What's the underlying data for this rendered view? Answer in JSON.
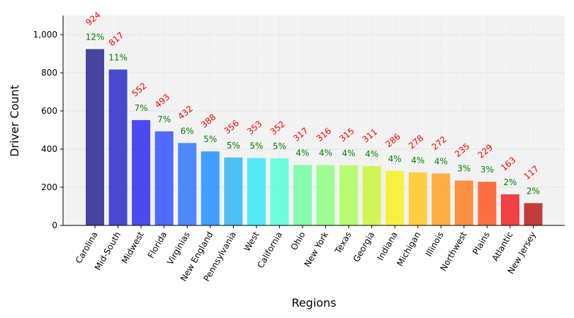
{
  "chart_data": {
    "type": "bar",
    "title": "",
    "xlabel": "Regions",
    "ylabel": "Driver Count",
    "ylim": [
      0,
      1100
    ],
    "yticks": [
      0,
      200,
      400,
      600,
      800,
      1000
    ],
    "ytick_labels": [
      "0",
      "200",
      "400",
      "600",
      "800",
      "1,000"
    ],
    "grid": true,
    "categories": [
      "Carolina",
      "Mid-South",
      "Midwest",
      "Florida",
      "Virginias",
      "New England",
      "Pennsylvania",
      "West",
      "California",
      "Ohio",
      "New York",
      "Texas",
      "Georgia",
      "Indiana",
      "Michigan",
      "Illinois",
      "Northwest",
      "Plains",
      "Atlantic",
      "New Jersey"
    ],
    "values": [
      924,
      817,
      552,
      493,
      432,
      388,
      356,
      353,
      352,
      317,
      316,
      315,
      311,
      286,
      278,
      272,
      235,
      229,
      163,
      117
    ],
    "value_labels": [
      "924",
      "817",
      "552",
      "493",
      "432",
      "388",
      "356",
      "353",
      "352",
      "317",
      "316",
      "315",
      "311",
      "286",
      "278",
      "272",
      "235",
      "229",
      "163",
      "117"
    ],
    "percent_labels": [
      "12%",
      "11%",
      "7%",
      "7%",
      "6%",
      "5%",
      "5%",
      "5%",
      "5%",
      "4%",
      "4%",
      "4%",
      "4%",
      "4%",
      "4%",
      "4%",
      "3%",
      "3%",
      "2%",
      "2%"
    ],
    "colors": [
      "#1f1f8c",
      "#2323c4",
      "#2626ee",
      "#2e4cff",
      "#2a70ff",
      "#1a8cff",
      "#26b4f4",
      "#2ee6f7",
      "#4dffd7",
      "#6dff9e",
      "#8aff80",
      "#a8ff55",
      "#ccf533",
      "#f5f01a",
      "#ffc61a",
      "#ff9f1a",
      "#ff7a1a",
      "#ff521a",
      "#f01a1a",
      "#b81414"
    ],
    "value_label_color": "#ff0000",
    "percent_label_color": "#008000",
    "plot_bg": "#f2f2f2"
  }
}
